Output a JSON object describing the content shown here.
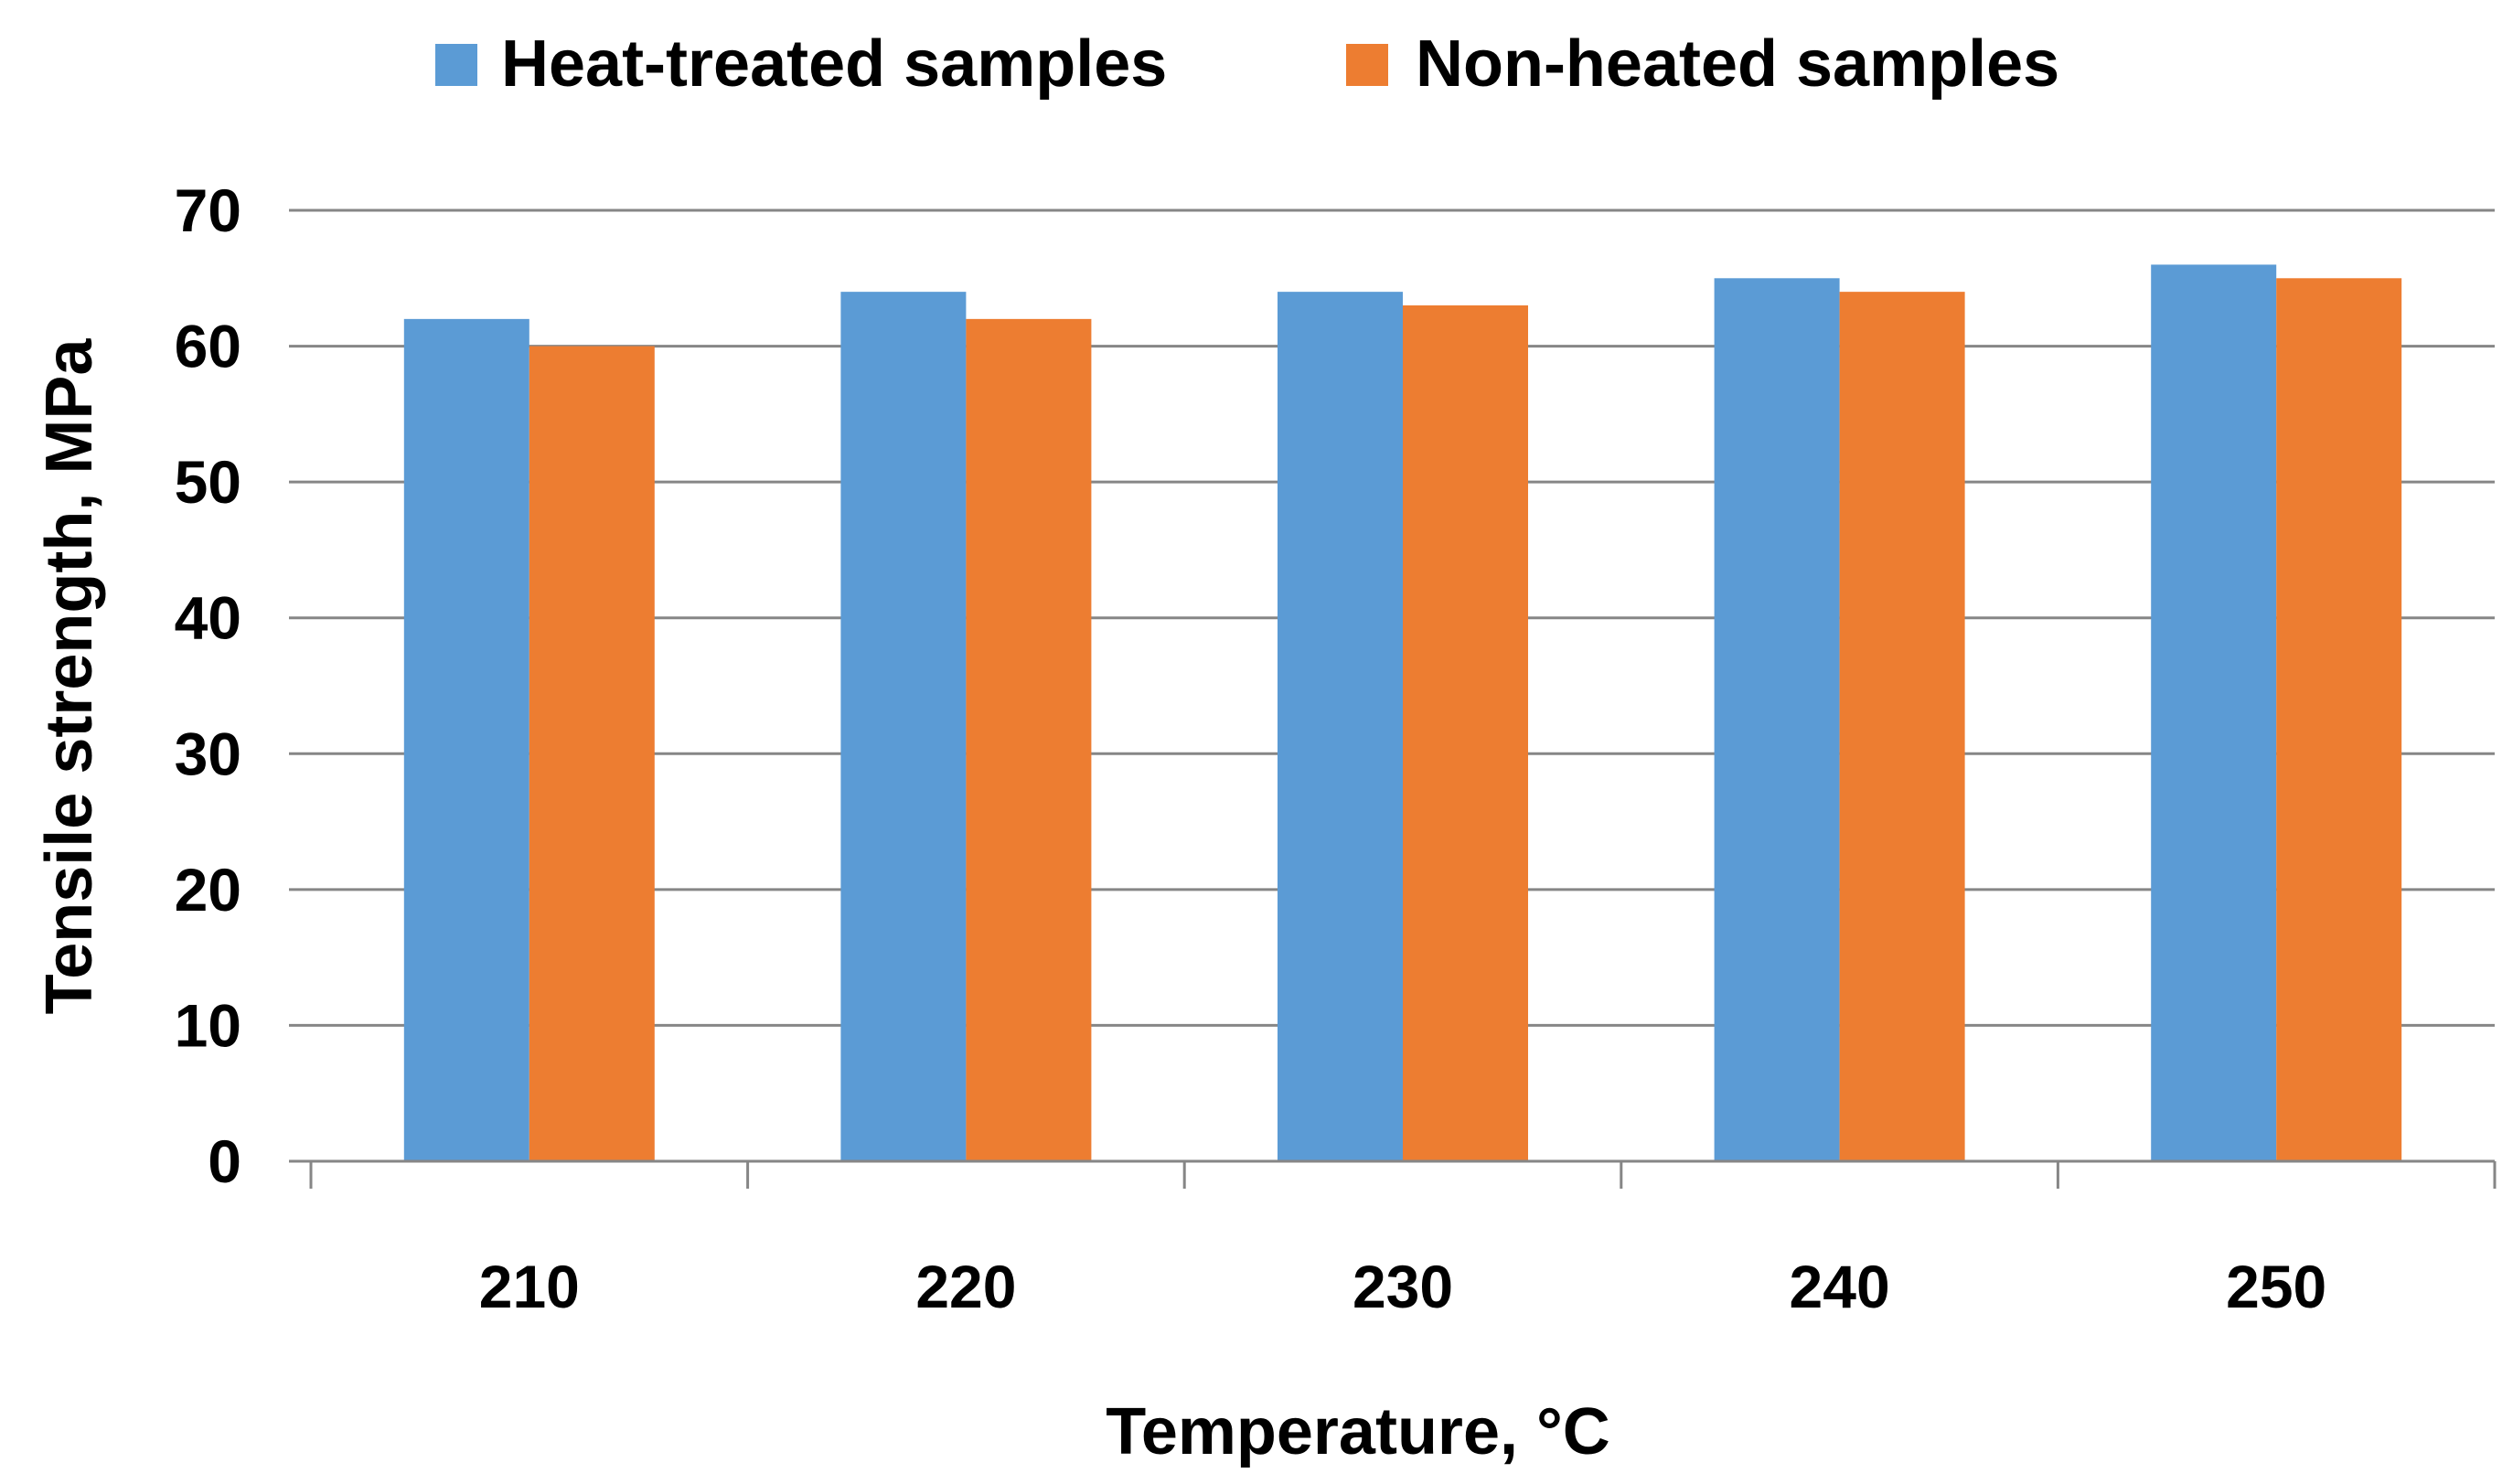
{
  "chart_data": {
    "type": "bar",
    "title": "",
    "categories": [
      "210",
      "220",
      "230",
      "240",
      "250"
    ],
    "series": [
      {
        "name": "Heat-treated samples",
        "color": "#5B9BD5",
        "values": [
          62,
          64,
          64,
          65,
          66
        ]
      },
      {
        "name": "Non-heated samples",
        "color": "#ED7D31",
        "values": [
          60,
          62,
          63,
          64,
          65
        ]
      }
    ],
    "xlabel": "Temperature, °C",
    "ylabel": "Tensile strength, MPa",
    "ylim": [
      0,
      70
    ],
    "yticks": [
      "0",
      "10",
      "20",
      "30",
      "40",
      "50",
      "60",
      "70"
    ],
    "grid": true,
    "legend_position": "top"
  }
}
